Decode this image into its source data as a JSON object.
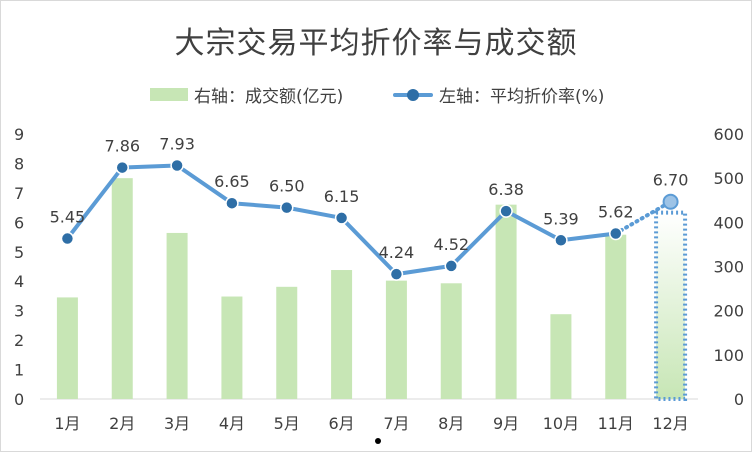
{
  "chart_data": {
    "type": "bar+line",
    "title": "大宗交易平均折价率与成交额",
    "categories": [
      "1月",
      "2月",
      "3月",
      "4月",
      "5月",
      "6月",
      "7月",
      "8月",
      "9月",
      "10月",
      "11月",
      "12月"
    ],
    "series": [
      {
        "name": "右轴：成交额(亿元)",
        "type": "bar",
        "axis": "right",
        "values": [
          230,
          500,
          376,
          232,
          254,
          292,
          268,
          262,
          440,
          192,
          372,
          422
        ]
      },
      {
        "name": "左轴：平均折价率(%)",
        "type": "line",
        "axis": "left",
        "values": [
          5.45,
          7.86,
          7.93,
          6.65,
          6.5,
          6.15,
          4.24,
          4.52,
          6.38,
          5.39,
          5.62,
          6.7
        ],
        "labels": [
          "5.45",
          "7.86",
          "7.93",
          "6.65",
          "6.50",
          "6.15",
          "4.24",
          "4.52",
          "6.38",
          "5.39",
          "5.62",
          "6.70"
        ]
      }
    ],
    "left_axis": {
      "min": 0,
      "max": 9,
      "ticks": [
        "0",
        "1",
        "2",
        "3",
        "4",
        "5",
        "6",
        "7",
        "8",
        "9"
      ]
    },
    "right_axis": {
      "min": 0,
      "max": 600,
      "ticks": [
        "0",
        "100",
        "200",
        "300",
        "400",
        "500",
        "600"
      ]
    },
    "grid": false,
    "legend": "top",
    "highlight_last": true,
    "colors": {
      "bar": "#c7e6b5",
      "line": "#5b9bd5",
      "marker": "#2e6ea6",
      "text": "#404040",
      "axis": "#d9d9d9"
    }
  }
}
